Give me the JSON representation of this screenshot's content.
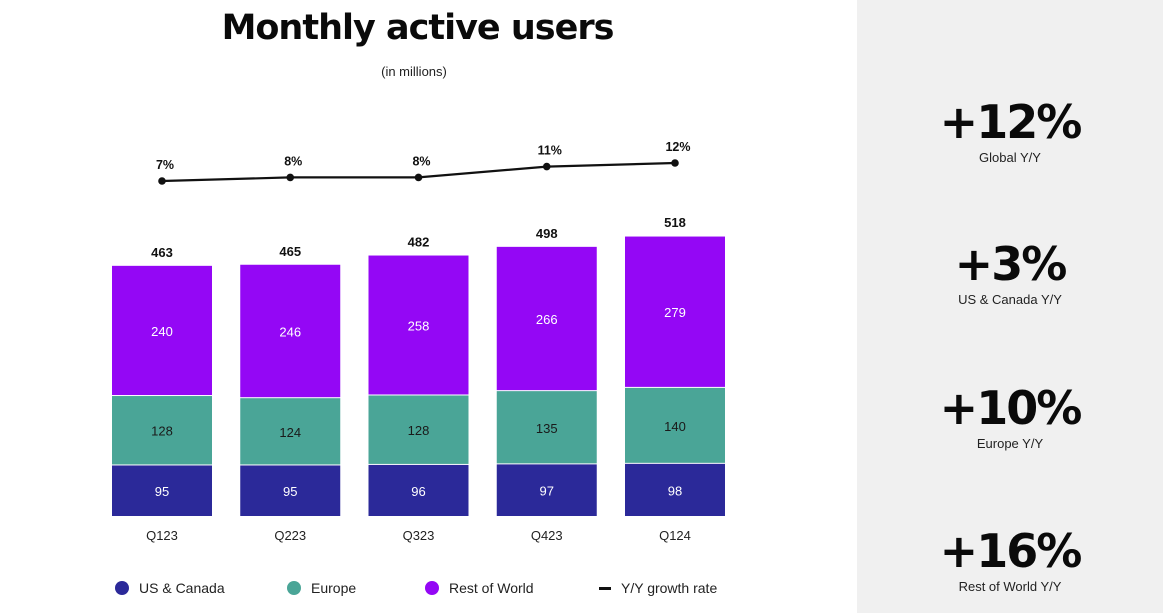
{
  "header": {
    "title": "Monthly active users",
    "subtitle": "(in millions)"
  },
  "colors": {
    "us_canada": "#2b2999",
    "europe": "#4aa597",
    "rest_of_world": "#9407f5",
    "growth_line": "#111111"
  },
  "chart_data": {
    "type": "bar",
    "stacked": true,
    "title": "Monthly active users",
    "subtitle": "(in millions)",
    "categories": [
      "Q123",
      "Q223",
      "Q323",
      "Q423",
      "Q124"
    ],
    "series": [
      {
        "name": "US & Canada",
        "values": [
          95,
          95,
          96,
          97,
          98
        ]
      },
      {
        "name": "Europe",
        "values": [
          128,
          124,
          128,
          135,
          140
        ]
      },
      {
        "name": "Rest of World",
        "values": [
          240,
          246,
          258,
          266,
          279
        ]
      }
    ],
    "totals": [
      463,
      465,
      482,
      498,
      518
    ],
    "line": {
      "name": "Y/Y growth rate",
      "values": [
        7,
        8,
        8,
        11,
        12
      ],
      "labels": [
        "7%",
        "8%",
        "8%",
        "11%",
        "12%"
      ]
    },
    "ylim": [
      0,
      518
    ],
    "grid": false,
    "legend_position": "bottom"
  },
  "legend": {
    "items": [
      {
        "label": "US & Canada"
      },
      {
        "label": "Europe"
      },
      {
        "label": "Rest of World"
      },
      {
        "label": "Y/Y growth rate"
      }
    ]
  },
  "stats": [
    {
      "value": "+12%",
      "label": "Global Y/Y"
    },
    {
      "value": "+3%",
      "label": "US & Canada Y/Y"
    },
    {
      "value": "+10%",
      "label": "Europe Y/Y"
    },
    {
      "value": "+16%",
      "label": "Rest of World Y/Y"
    }
  ]
}
